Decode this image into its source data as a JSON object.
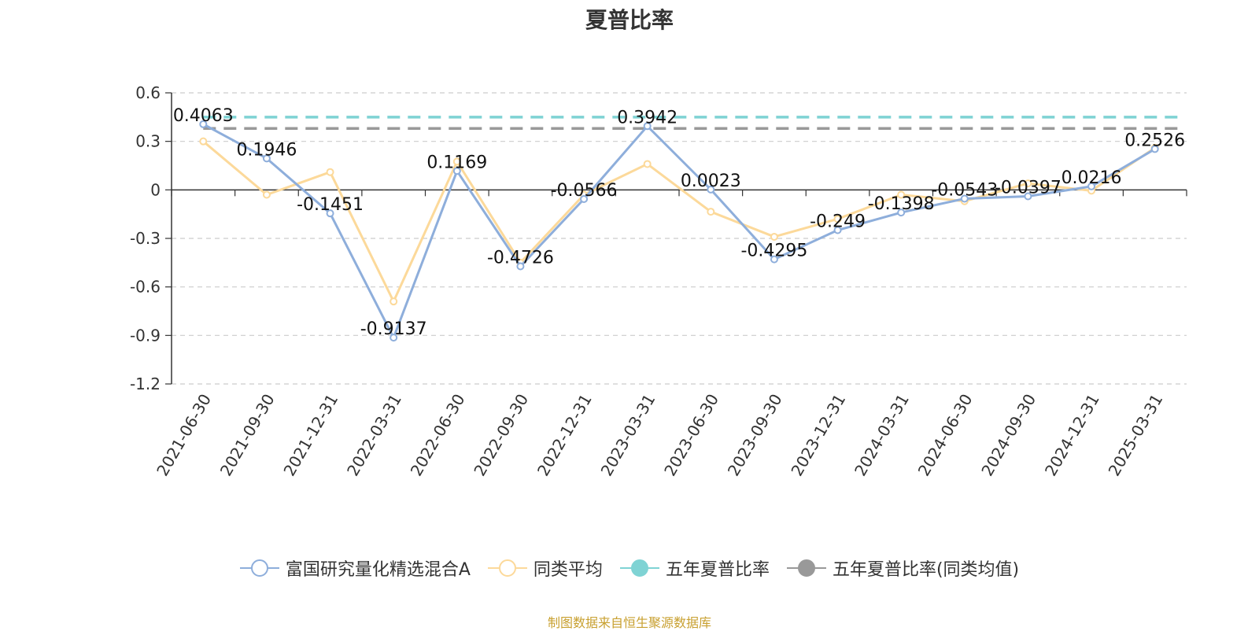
{
  "chart_data": {
    "type": "line",
    "title": "夏普比率",
    "categories": [
      "2021-06-30",
      "2021-09-30",
      "2021-12-31",
      "2022-03-31",
      "2022-06-30",
      "2022-09-30",
      "2022-12-31",
      "2023-03-31",
      "2023-06-30",
      "2023-09-30",
      "2023-12-31",
      "2024-03-31",
      "2024-06-30",
      "2024-09-30",
      "2024-12-31",
      "2025-03-31"
    ],
    "y_ticks": [
      "0.6",
      "0.3",
      "0",
      "-0.3",
      "-0.6",
      "-0.9",
      "-1.2"
    ],
    "ylim": [
      -1.2,
      0.6
    ],
    "grid": true,
    "legend_position": "bottom",
    "series": [
      {
        "name": "富国研究量化精选混合A",
        "color": "#8eaedb",
        "values": [
          0.4063,
          0.1946,
          -0.1451,
          -0.9137,
          0.1169,
          -0.4726,
          -0.0566,
          0.3942,
          0.0023,
          -0.4295,
          -0.249,
          -0.1398,
          -0.0543,
          -0.0397,
          0.0216,
          0.2526
        ],
        "labels": [
          "0.4063",
          "0.1946",
          "-0.1451",
          "-0.9137",
          "0.1169",
          "-0.4726",
          "-0.0566",
          "0.3942",
          "0.0023",
          "-0.4295",
          "-0.249",
          "-0.1398",
          "-0.0543",
          "-0.0397",
          "0.0216",
          "0.2526"
        ]
      },
      {
        "name": "同类平均",
        "color": "#fcd99a",
        "values": [
          0.3,
          -0.03,
          0.11,
          -0.69,
          0.175,
          -0.45,
          -0.03,
          0.16,
          -0.135,
          -0.29,
          -0.18,
          -0.03,
          -0.07,
          0.04,
          -0.005,
          0.26
        ]
      }
    ],
    "reference_lines": [
      {
        "name": "五年夏普比率",
        "value": 0.45,
        "color": "#7fd3d4"
      },
      {
        "name": "五年夏普比率(同类均值)",
        "value": 0.38,
        "color": "#999999"
      }
    ]
  },
  "source": "制图数据来自恒生聚源数据库"
}
